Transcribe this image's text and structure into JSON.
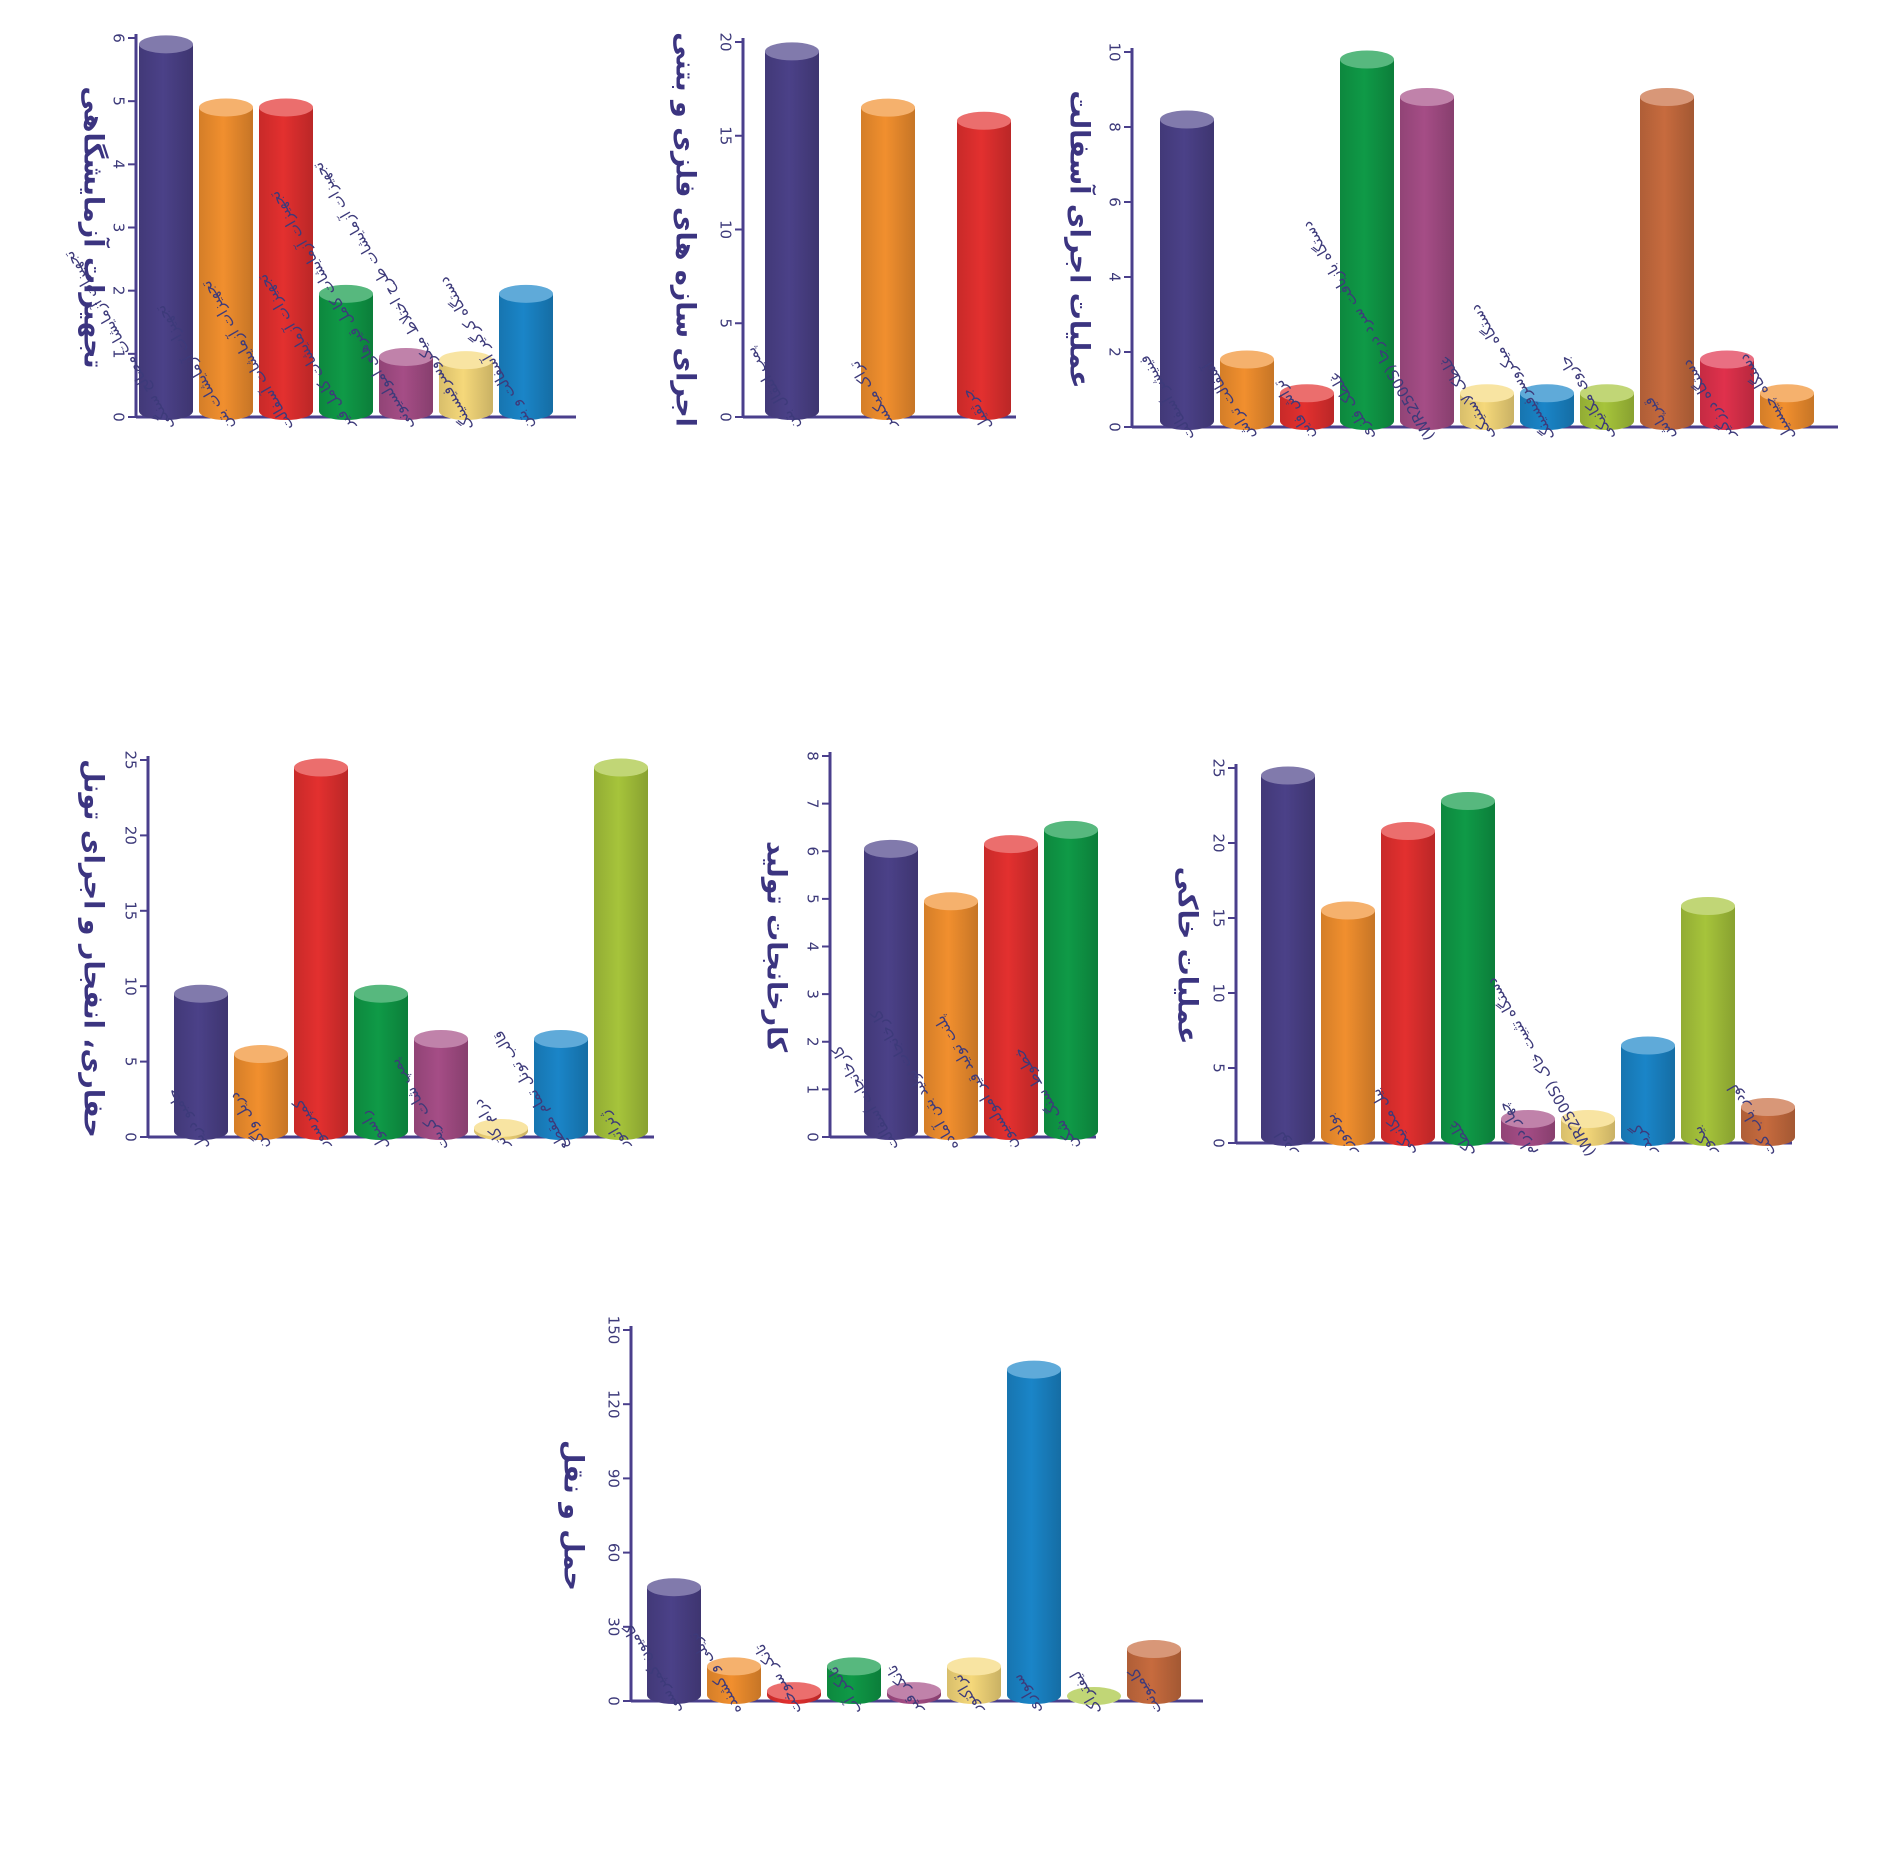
{
  "palette": {
    "axis": "#4a3f8c",
    "title": "#3b3480",
    "colors": [
      "#4b4188",
      "#f18f2e",
      "#e3302f",
      "#0f9a47",
      "#a54d86",
      "#f5d87a",
      "#1a85c8",
      "#a6c43b",
      "#c76b3e",
      "#e0314c"
    ]
  },
  "chart_data": [
    {
      "id": "lab",
      "type": "bar",
      "title": "تجهیزات آزمایشگاهی",
      "ylim": [
        0,
        6
      ],
      "yticks": [
        0,
        1,
        2,
        3,
        4,
        5,
        6
      ],
      "categories": [
        "تجهیزات آزمایشات مصالح سنگی",
        "تجهیزات آزمایشات بتن",
        "تجهیزات آزمایشات آسفالت",
        "تجهیزات آزمایشات کامل قیر",
        "تجهیزات آزمایشات کامل قیرهای امولسیونی",
        "تجهیزات آزمایشات طرح اختلاط میکروسرفیسینگ",
        "دستگاه کرگیر آسفالت و بتن"
      ],
      "values": [
        5.9,
        4.9,
        4.9,
        1.95,
        0.95,
        0.9,
        1.95
      ],
      "colors": [
        "#4b4188",
        "#f18f2e",
        "#e3302f",
        "#0f9a47",
        "#a54d86",
        "#f5d87a",
        "#1a85c8"
      ]
    },
    {
      "id": "steel",
      "type": "bar",
      "title": "اجرای سازه های فلزی و بتنی",
      "ylim": [
        0,
        20
      ],
      "yticks": [
        0,
        5,
        10,
        15,
        20
      ],
      "categories": [
        "پمپ انتقال بتن",
        "تراک میکسر",
        "جرثقیل"
      ],
      "values": [
        19.5,
        16.5,
        15.8
      ],
      "colors": [
        "#4b4188",
        "#f18f2e",
        "#e3302f"
      ]
    },
    {
      "id": "asphalt",
      "type": "bar",
      "title": "عملیات اجرای آسفالت",
      "ylim": [
        0,
        10
      ],
      "yticks": [
        0,
        2,
        4,
        6,
        8,
        10
      ],
      "categories": [
        "فینیشر آسفالت",
        "آسفالت تراش",
        "تراش فاین",
        "غلطک فلزی",
        "دستگاه بازیافت سرد درجا (WR2500S)",
        "غلطک لاستیکی",
        "دستگاه میکروسرفیسینگ",
        "جاروی مکانیکی",
        "قیرپاش",
        "دستگاه درزگیر",
        "دستگاه چیپسیل"
      ],
      "values": [
        8.2,
        1.8,
        0.9,
        9.8,
        8.8,
        0.9,
        0.9,
        0.9,
        8.8,
        1.8,
        0.9
      ],
      "colors": [
        "#4b4188",
        "#f18f2e",
        "#e3302f",
        "#0f9a47",
        "#a54d86",
        "#f5d87a",
        "#1a85c8",
        "#a6c43b",
        "#c76b3e",
        "#e0314c",
        "#f18f2e"
      ]
    },
    {
      "id": "tunnel",
      "type": "bar",
      "title": "حفاری، انفجار و اجرای تونل",
      "ylim": [
        0,
        25
      ],
      "yticks": [
        0,
        5,
        10,
        15,
        20,
        25
      ],
      "categories": [
        "جامبو دریل",
        "دریل واگن",
        "کمپرسور",
        "راسول",
        "پمپ شات کریت",
        "درام کاتر",
        "قالب تونل تمام مقطع",
        "ژنراتور"
      ],
      "values": [
        9.5,
        5.5,
        24.5,
        9.5,
        6.5,
        0.6,
        6.5,
        24.5
      ],
      "colors": [
        "#4b4188",
        "#f18f2e",
        "#e3302f",
        "#0f9a47",
        "#a54d86",
        "#f5d87a",
        "#1a85c8",
        "#a6c43b"
      ]
    },
    {
      "id": "plants",
      "type": "bar",
      "title": "کارخانجات تولید",
      "ylim": [
        0,
        8
      ],
      "yticks": [
        0,
        1,
        2,
        3,
        4,
        5,
        6,
        7,
        8
      ],
      "categories": [
        "کارخانجات آسفالت",
        "کارخانجات تولید بتن آماده",
        "پلنت تولید قیر امولسیون",
        "خطوط سنگ شکن"
      ],
      "values": [
        6.05,
        4.95,
        6.15,
        6.45
      ],
      "colors": [
        "#4b4188",
        "#f18f2e",
        "#e3302f",
        "#0f9a47"
      ]
    },
    {
      "id": "earth",
      "type": "bar",
      "title": "عملیات خاکی",
      "ylim": [
        0,
        25
      ],
      "yticks": [
        0,
        5,
        10,
        15,
        20,
        25
      ],
      "categories": [
        "لودر",
        "بولدوزر",
        "بیل مکانیکی",
        "غلطک",
        "چهار درام",
        "دستگاه تثبیت خاک (WR2500S)",
        "گریدر",
        "بیکور",
        "لودر باب کت"
      ],
      "values": [
        24.5,
        15.5,
        20.8,
        22.8,
        1.6,
        1.6,
        6.5,
        15.8,
        2.4
      ],
      "colors": [
        "#4b4188",
        "#f18f2e",
        "#e3302f",
        "#0f9a47",
        "#a54d86",
        "#f5d87a",
        "#1a85c8",
        "#a6c43b",
        "#c76b3e"
      ]
    },
    {
      "id": "transport",
      "type": "bar",
      "title": "حمل و نقل",
      "ylim": [
        0,
        150
      ],
      "yticks": [
        0,
        30,
        60,
        90,
        120,
        150
      ],
      "categories": [
        "کامیون کمپرسی",
        "تریلی و کشنده",
        "تانکر سوخت",
        "تانکر آب",
        "تانکر قیر",
        "تراکتور",
        "سواری",
        "لیفتراک",
        "کامیونت"
      ],
      "values": [
        46,
        14,
        4,
        14,
        4,
        14,
        134,
        2,
        21
      ],
      "colors": [
        "#4b4188",
        "#f18f2e",
        "#e3302f",
        "#0f9a47",
        "#a54d86",
        "#f5d87a",
        "#1a85c8",
        "#a6c43b",
        "#c76b3e"
      ]
    }
  ]
}
